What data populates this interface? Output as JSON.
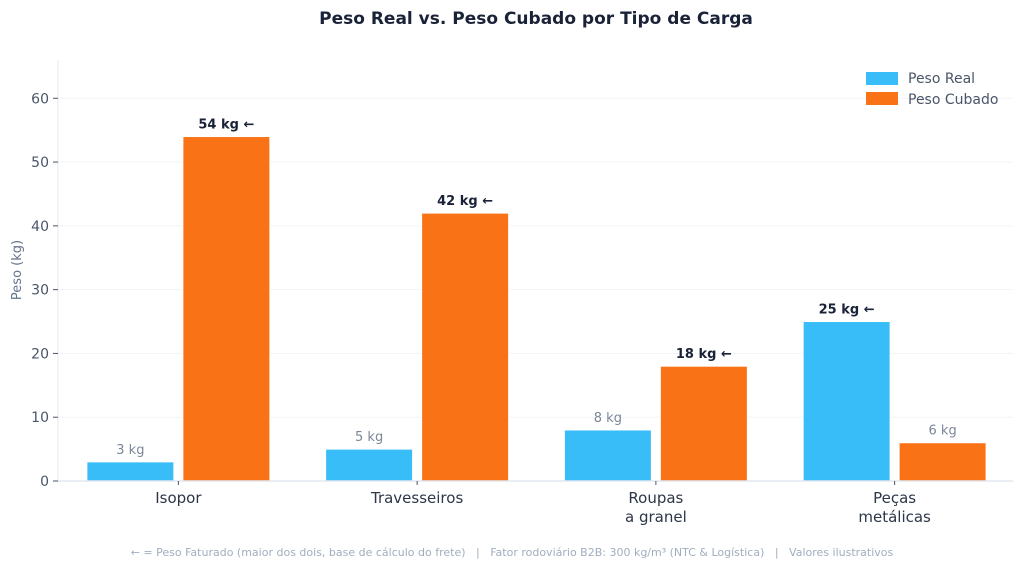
{
  "chart_data": {
    "type": "bar",
    "title": "Peso Real vs. Peso Cubado por Tipo de Carga",
    "xlabel": "",
    "ylabel": "Peso (kg)",
    "ylim": [
      0,
      66
    ],
    "yticks": [
      0,
      10,
      20,
      30,
      40,
      50,
      60
    ],
    "grid": true,
    "legend_position": "top-right",
    "categories": [
      [
        "Isopor"
      ],
      [
        "Travesseiros"
      ],
      [
        "Roupas",
        "a granel"
      ],
      [
        "Peças",
        "metálicas"
      ]
    ],
    "series": [
      {
        "name": "Peso Real",
        "color": "#38bdf8",
        "values": [
          3,
          5,
          8,
          25
        ],
        "labels": [
          "3 kg",
          "5 kg",
          "8 kg",
          "25 kg ←"
        ],
        "billed": [
          false,
          false,
          false,
          true
        ]
      },
      {
        "name": "Peso Cubado",
        "color": "#f97316",
        "values": [
          54,
          42,
          18,
          6
        ],
        "labels": [
          "54 kg ←",
          "42 kg ←",
          "18 kg ←",
          "6 kg"
        ],
        "billed": [
          true,
          true,
          true,
          false
        ]
      }
    ],
    "footnote": "← = Peso Faturado (maior dos dois, base de cálculo do frete)   |   Fator rodoviário B2B: 300 kg/m³ (NTC & Logística)   |   Valores ilustrativos"
  }
}
